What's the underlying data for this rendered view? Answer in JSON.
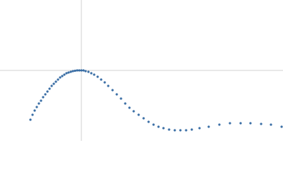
{
  "chart_data": {
    "type": "scatter",
    "color": "#3a6ea5",
    "xlim": [
      0,
      3.478
    ],
    "ylim": [
      0,
      2
    ],
    "crosshair": {
      "x": 1,
      "y": 1,
      "color": "#d0d0d0"
    },
    "x": [
      0.374,
      0.4,
      0.426,
      0.452,
      0.478,
      0.504,
      0.53,
      0.557,
      0.583,
      0.609,
      0.635,
      0.661,
      0.687,
      0.713,
      0.739,
      0.765,
      0.791,
      0.817,
      0.843,
      0.87,
      0.896,
      0.922,
      0.948,
      0.974,
      1.0,
      1.026,
      1.052,
      1.087,
      1.122,
      1.157,
      1.2,
      1.243,
      1.287,
      1.33,
      1.383,
      1.435,
      1.487,
      1.539,
      1.591,
      1.643,
      1.704,
      1.765,
      1.826,
      1.887,
      1.948,
      2.009,
      2.078,
      2.148,
      2.217,
      2.287,
      2.357,
      2.452,
      2.565,
      2.696,
      2.826,
      2.957,
      3.078,
      3.209,
      3.33,
      3.461
    ],
    "values": [
      0.3,
      0.37,
      0.43,
      0.48,
      0.53,
      0.57,
      0.62,
      0.66,
      0.7,
      0.74,
      0.78,
      0.81,
      0.84,
      0.87,
      0.9,
      0.92,
      0.94,
      0.96,
      0.97,
      0.98,
      0.99,
      0.995,
      1.0,
      1.0,
      1.0,
      1.0,
      0.99,
      0.98,
      0.96,
      0.94,
      0.91,
      0.87,
      0.83,
      0.78,
      0.72,
      0.66,
      0.6,
      0.53,
      0.47,
      0.42,
      0.37,
      0.32,
      0.27,
      0.23,
      0.2,
      0.18,
      0.16,
      0.15,
      0.15,
      0.15,
      0.16,
      0.18,
      0.2,
      0.23,
      0.25,
      0.25,
      0.25,
      0.24,
      0.23,
      0.2
    ]
  }
}
